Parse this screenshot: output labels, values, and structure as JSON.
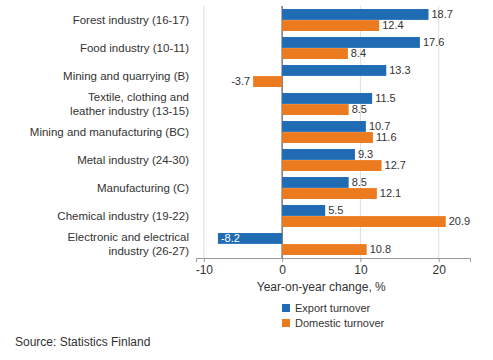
{
  "chart_data": {
    "type": "bar",
    "orientation": "horizontal",
    "categories": [
      "Forest industry (16-17)",
      "Food industry (10-11)",
      "Mining and quarrying (B)",
      "Textile, clothing and\nleather industry (13-15)",
      "Mining and manufacturing (BC)",
      "Metal industry (24-30)",
      "Manufacturing (C)",
      "Chemical industry (19-22)",
      "Electronic and electrical\nindustry (26-27)"
    ],
    "series": [
      {
        "name": "Export turnover",
        "color": "#1f6cb4",
        "values": [
          18.7,
          17.6,
          13.3,
          11.5,
          10.7,
          9.3,
          8.5,
          5.5,
          -8.2
        ]
      },
      {
        "name": "Domestic turnover",
        "color": "#ec7a1e",
        "values": [
          12.4,
          8.4,
          -3.7,
          8.5,
          11.6,
          12.7,
          12.1,
          20.9,
          10.8
        ]
      }
    ],
    "x_label": "Year-on-year change, %",
    "xlim": [
      -11,
      24
    ],
    "xticks": [
      -10,
      0,
      10,
      20
    ],
    "grid": true,
    "data_labels": true,
    "legend": "bottom",
    "source": "Source: Statistics Finland"
  }
}
